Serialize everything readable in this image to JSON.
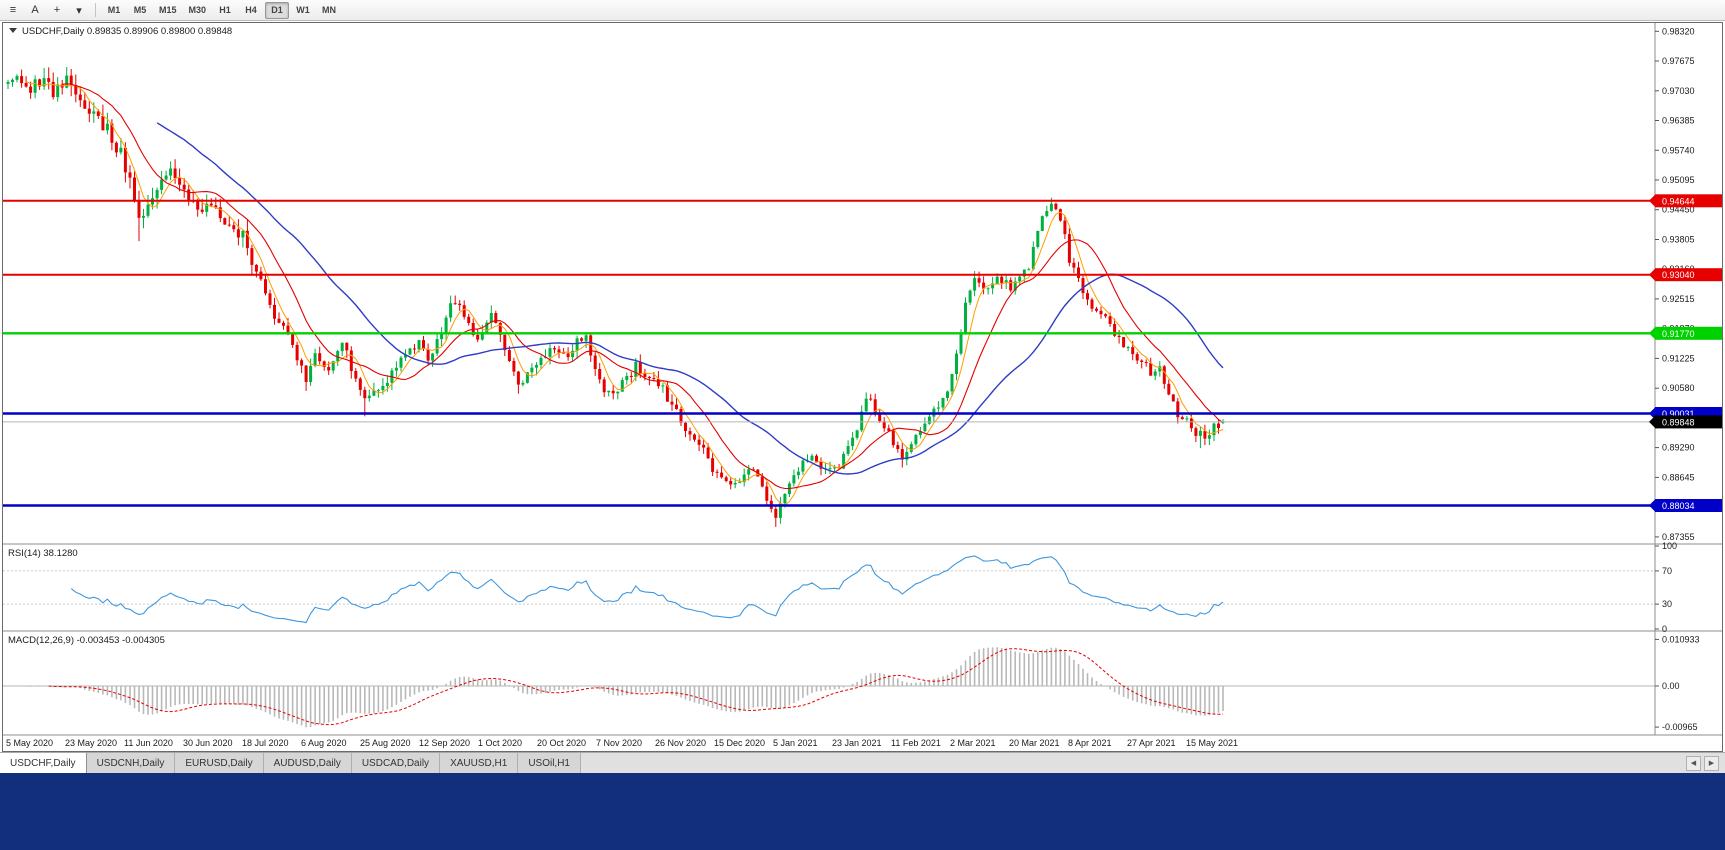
{
  "window": {
    "footer_color": "#122f7d"
  },
  "toolbar": {
    "icons": [
      {
        "name": "chart-list-icon",
        "glyph": "≡"
      },
      {
        "name": "cursor-icon",
        "glyph": "A"
      },
      {
        "name": "crosshair-icon",
        "glyph": "+"
      },
      {
        "name": "draw-tools-dropdown-icon",
        "glyph": "▾"
      }
    ],
    "timeframes": [
      "M1",
      "M5",
      "M15",
      "M30",
      "H1",
      "H4",
      "D1",
      "W1",
      "MN"
    ],
    "active_timeframe": "D1"
  },
  "chart": {
    "symbol_title": "USDCHF,Daily",
    "ohlc_text": "0.89835 0.89906 0.89800 0.89848"
  },
  "price_axis": {
    "labels": [
      "0.98320",
      "0.97675",
      "0.97030",
      "0.96385",
      "0.95740",
      "0.95095",
      "0.94450",
      "0.93805",
      "0.93160",
      "0.92515",
      "0.91870",
      "0.91225",
      "0.90580",
      "0.89935",
      "0.89290",
      "0.88645",
      "0.88000",
      "0.87355"
    ]
  },
  "time_axis": {
    "labels": [
      "5 May 2020",
      "23 May 2020",
      "11 Jun 2020",
      "30 Jun 2020",
      "18 Jul 2020",
      "6 Aug 2020",
      "25 Aug 2020",
      "12 Sep 2020",
      "1 Oct 2020",
      "20 Oct 2020",
      "7 Nov 2020",
      "26 Nov 2020",
      "15 Dec 2020",
      "5 Jan 2021",
      "23 Jan 2021",
      "11 Feb 2021",
      "2 Mar 2021",
      "20 Mar 2021",
      "8 Apr 2021",
      "27 Apr 2021",
      "15 May 2021"
    ]
  },
  "rsi": {
    "label": "RSI(14)",
    "value": "38.1280",
    "axis_labels": [
      "100",
      "70",
      "30",
      "0"
    ]
  },
  "macd": {
    "label": "MACD(12,26,9)",
    "value_text": "-0.003453 -0.004305",
    "axis_labels": [
      "0.010933",
      "0.00",
      "-0.00965"
    ]
  },
  "tabs": [
    {
      "label": "USDCHF,Daily",
      "active": true
    },
    {
      "label": "USDCNH,Daily",
      "active": false
    },
    {
      "label": "EURUSD,Daily",
      "active": false
    },
    {
      "label": "AUDUSD,Daily",
      "active": false
    },
    {
      "label": "USDCAD,Daily",
      "active": false
    },
    {
      "label": "XAUUSD,H1",
      "active": false
    },
    {
      "label": "USOil,H1",
      "active": false
    }
  ],
  "tab_bar": {
    "arrow_left": "◀",
    "arrow_right": "▶"
  },
  "chart_data": {
    "type": "candlestick",
    "symbol": "USDCHF",
    "period": "Daily",
    "num_candles": 270,
    "y_range": [
      0.872,
      0.985
    ],
    "last_ohlc": {
      "open": 0.89835,
      "high": 0.89906,
      "low": 0.898,
      "close": 0.89848
    },
    "waypoints": [
      [
        0,
        0.9718
      ],
      [
        2,
        0.9748
      ],
      [
        4,
        0.9695
      ],
      [
        6,
        0.9712
      ],
      [
        8,
        0.9738
      ],
      [
        10,
        0.9702
      ],
      [
        13,
        0.9724
      ],
      [
        16,
        0.9692
      ],
      [
        19,
        0.9648
      ],
      [
        22,
        0.962
      ],
      [
        25,
        0.9572
      ],
      [
        27,
        0.9508
      ],
      [
        29,
        0.9425
      ],
      [
        31,
        0.9458
      ],
      [
        34,
        0.9502
      ],
      [
        37,
        0.9524
      ],
      [
        39,
        0.948
      ],
      [
        42,
        0.9442
      ],
      [
        45,
        0.9456
      ],
      [
        48,
        0.941
      ],
      [
        52,
        0.9386
      ],
      [
        55,
        0.9306
      ],
      [
        58,
        0.9238
      ],
      [
        61,
        0.9186
      ],
      [
        64,
        0.9116
      ],
      [
        66,
        0.908
      ],
      [
        68,
        0.9126
      ],
      [
        71,
        0.9102
      ],
      [
        74,
        0.915
      ],
      [
        77,
        0.9086
      ],
      [
        79,
        0.904
      ],
      [
        82,
        0.9046
      ],
      [
        85,
        0.9094
      ],
      [
        88,
        0.9134
      ],
      [
        91,
        0.9164
      ],
      [
        93,
        0.9106
      ],
      [
        96,
        0.919
      ],
      [
        99,
        0.925
      ],
      [
        101,
        0.9216
      ],
      [
        104,
        0.9154
      ],
      [
        107,
        0.922
      ],
      [
        110,
        0.9134
      ],
      [
        113,
        0.9064
      ],
      [
        116,
        0.9094
      ],
      [
        118,
        0.9124
      ],
      [
        121,
        0.915
      ],
      [
        124,
        0.9134
      ],
      [
        126,
        0.916
      ],
      [
        128,
        0.9174
      ],
      [
        130,
        0.9088
      ],
      [
        133,
        0.9044
      ],
      [
        136,
        0.9064
      ],
      [
        139,
        0.911
      ],
      [
        142,
        0.9084
      ],
      [
        145,
        0.9054
      ],
      [
        148,
        0.9006
      ],
      [
        151,
        0.896
      ],
      [
        154,
        0.892
      ],
      [
        156,
        0.8876
      ],
      [
        159,
        0.885
      ],
      [
        162,
        0.8864
      ],
      [
        165,
        0.8884
      ],
      [
        167,
        0.8844
      ],
      [
        169,
        0.8798
      ],
      [
        170,
        0.8774
      ],
      [
        172,
        0.8826
      ],
      [
        175,
        0.8884
      ],
      [
        178,
        0.8904
      ],
      [
        181,
        0.8874
      ],
      [
        184,
        0.889
      ],
      [
        187,
        0.8944
      ],
      [
        190,
        0.904
      ],
      [
        193,
        0.8994
      ],
      [
        196,
        0.8936
      ],
      [
        198,
        0.891
      ],
      [
        201,
        0.8964
      ],
      [
        204,
        0.8996
      ],
      [
        206,
        0.9024
      ],
      [
        208,
        0.906
      ],
      [
        210,
        0.913
      ],
      [
        212,
        0.9234
      ],
      [
        214,
        0.9296
      ],
      [
        216,
        0.9264
      ],
      [
        218,
        0.929
      ],
      [
        220,
        0.9296
      ],
      [
        222,
        0.9274
      ],
      [
        224,
        0.9306
      ],
      [
        226,
        0.9324
      ],
      [
        228,
        0.9394
      ],
      [
        230,
        0.945
      ],
      [
        231,
        0.9462
      ],
      [
        233,
        0.943
      ],
      [
        235,
        0.934
      ],
      [
        238,
        0.9264
      ],
      [
        241,
        0.9224
      ],
      [
        244,
        0.9194
      ],
      [
        247,
        0.9154
      ],
      [
        250,
        0.912
      ],
      [
        253,
        0.9094
      ],
      [
        255,
        0.9114
      ],
      [
        257,
        0.9036
      ],
      [
        259,
        0.9004
      ],
      [
        261,
        0.8994
      ],
      [
        263,
        0.8964
      ],
      [
        265,
        0.8954
      ],
      [
        267,
        0.8974
      ],
      [
        269,
        0.89848
      ]
    ],
    "spikes": [
      {
        "i": 29,
        "low": 0.9377
      },
      {
        "i": 66,
        "low": 0.9052
      },
      {
        "i": 79,
        "low": 0.8997
      },
      {
        "i": 99,
        "high": 0.9259
      },
      {
        "i": 113,
        "low": 0.9046
      },
      {
        "i": 170,
        "low": 0.8757
      },
      {
        "i": 198,
        "low": 0.8886
      },
      {
        "i": 214,
        "high": 0.9312
      },
      {
        "i": 231,
        "high": 0.9471
      },
      {
        "i": 264,
        "low": 0.8928
      }
    ],
    "colors": {
      "bull": "#00b140",
      "bear": "#e60000",
      "rsi": "#3f97de",
      "macd_hist": "#b8b8b8",
      "macd_signal": "#e60000",
      "bid_line": "#b4b4b4"
    },
    "moving_averages": [
      {
        "period": 5,
        "color": "#ff9d00",
        "width": 1
      },
      {
        "period": 13,
        "color": "#e60000",
        "width": 1.1
      },
      {
        "period": 34,
        "color": "#2f3cc6",
        "width": 1.4
      }
    ],
    "levels": [
      {
        "price": 0.94644,
        "label": "0.94644",
        "color": "#e60000",
        "width": 2
      },
      {
        "price": 0.9304,
        "label": "0.93040",
        "color": "#e60000",
        "width": 2
      },
      {
        "price": 0.9177,
        "label": "0.91770",
        "color": "#00d200",
        "width": 2.4
      },
      {
        "price": 0.90031,
        "label": "0.90031",
        "color": "#0000c8",
        "width": 2.4
      },
      {
        "price": 0.88034,
        "label": "0.88034",
        "color": "#0000c8",
        "width": 2.4
      }
    ],
    "bid": {
      "price": 0.89848,
      "label": "0.89848",
      "badge_bg": "#000000"
    },
    "rsi_period": 14
  }
}
